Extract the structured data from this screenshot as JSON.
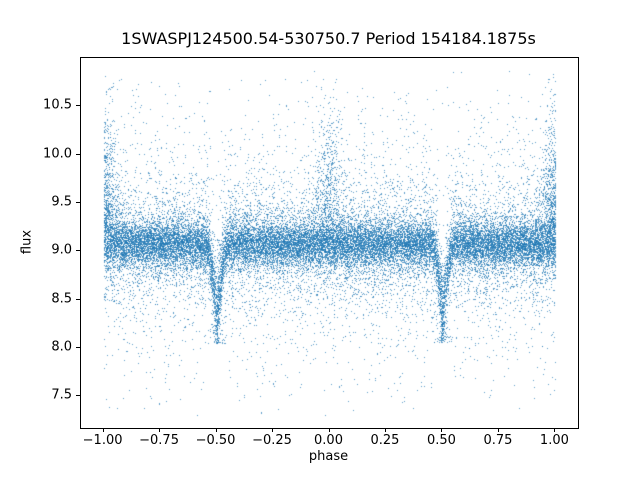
{
  "title": {
    "text": "1SWASPJ124500.54-530750.7 Period 154184.1875s"
  },
  "axes": {
    "xlabel": "phase",
    "ylabel": "flux",
    "x_tick_labels": [
      "−1.00",
      "−0.75",
      "−0.50",
      "−0.25",
      "0.00",
      "0.25",
      "0.50",
      "0.75",
      "1.00"
    ],
    "y_tick_labels": [
      "7.5",
      "8.0",
      "8.5",
      "9.0",
      "9.5",
      "10.0",
      "10.5"
    ],
    "axis_color": "#000000",
    "background_color": "#ffffff"
  },
  "chart_data": {
    "type": "scatter",
    "title": "1SWASPJ124500.54-530750.7 Period 154184.1875s",
    "xlabel": "phase",
    "ylabel": "flux",
    "xlim": [
      -1.1,
      1.1
    ],
    "ylim": [
      7.17,
      11.0
    ],
    "x_tick_values": [
      -1.0,
      -0.75,
      -0.5,
      -0.25,
      0.0,
      0.25,
      0.5,
      0.75,
      1.0
    ],
    "y_tick_values": [
      7.5,
      8.0,
      8.5,
      9.0,
      9.5,
      10.0,
      10.5
    ],
    "grid": false,
    "legend": "none",
    "marker_color": "#1f77b4",
    "marker_alpha": 0.72,
    "marker_size_px": 1,
    "n_points": 30000,
    "seed": 20240512,
    "phase_range": [
      -1.0,
      1.0
    ],
    "band_center_flux": 9.08,
    "band_sigma_core": 0.12,
    "band_sigma_mid": 0.28,
    "band_sigma_tail": 0.72,
    "mix_core": 0.62,
    "mix_mid": 0.23,
    "flux_min": 7.3,
    "flux_max": 10.87,
    "eclipse_phases": [
      -0.5,
      0.5
    ],
    "eclipse_half_width_phase": 0.045,
    "eclipse_depth_flux": 1.05,
    "eclipse_min_flux": 8.05,
    "bright_cluster_phases": [
      0.0,
      -1.0,
      1.0
    ],
    "bright_cluster_fraction": 0.05,
    "description": "Phase-folded SuperWASP light curve of an eclipsing binary: dense band near flux 9.1 across phase -1 to 1, V-shaped eclipse dips at phase ±0.5 descending to flux ≈8.1, heavy-tailed outlier scatter spanning flux ≈7.3 to ≈10.85, with extra bright outliers clustered near phase 0 and ±1."
  }
}
